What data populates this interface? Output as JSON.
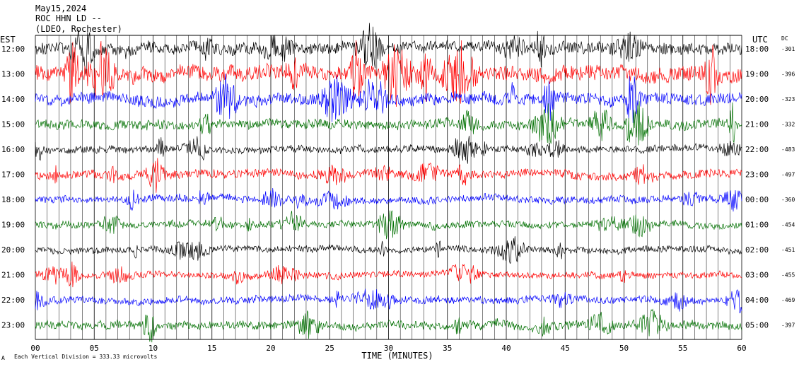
{
  "header": {
    "date": "May15,2024",
    "station": "ROC HHN LD --",
    "network": "(LDEO, Rochester)"
  },
  "left_axis_title": "EST",
  "right_axis_title": "UTC",
  "dc_title": "DC",
  "xlabel": "TIME (MINUTES)",
  "footer_symbol": "A",
  "footer": "Each Vertical Division =  333.33 microvolts",
  "colors": {
    "black": "#000000",
    "red": "#ff0000",
    "blue": "#0000ff",
    "green": "#007000"
  },
  "chart_data": {
    "type": "line",
    "title": "",
    "xlabel": "TIME (MINUTES)",
    "xlim": [
      0,
      60
    ],
    "x_ticks": [
      "00",
      "05",
      "10",
      "15",
      "20",
      "25",
      "30",
      "35",
      "40",
      "45",
      "50",
      "55",
      "60"
    ],
    "grid": "vertical lines every minute",
    "series": [
      {
        "est": "12:00",
        "utc": "18:00",
        "dc": "-301",
        "color": "black",
        "amp": 1.0
      },
      {
        "est": "13:00",
        "utc": "19:00",
        "dc": "-396",
        "color": "red",
        "amp": 1.3
      },
      {
        "est": "14:00",
        "utc": "20:00",
        "dc": "-323",
        "color": "blue",
        "amp": 1.0
      },
      {
        "est": "15:00",
        "utc": "21:00",
        "dc": "-332",
        "color": "green",
        "amp": 0.8
      },
      {
        "est": "16:00",
        "utc": "22:00",
        "dc": "-483",
        "color": "black",
        "amp": 0.6
      },
      {
        "est": "17:00",
        "utc": "23:00",
        "dc": "-497",
        "color": "red",
        "amp": 0.7
      },
      {
        "est": "18:00",
        "utc": "00:00",
        "dc": "-360",
        "color": "blue",
        "amp": 0.6
      },
      {
        "est": "19:00",
        "utc": "01:00",
        "dc": "-454",
        "color": "green",
        "amp": 0.6
      },
      {
        "est": "20:00",
        "utc": "02:00",
        "dc": "-451",
        "color": "black",
        "amp": 0.55
      },
      {
        "est": "21:00",
        "utc": "03:00",
        "dc": "-455",
        "color": "red",
        "amp": 0.55
      },
      {
        "est": "22:00",
        "utc": "04:00",
        "dc": "-469",
        "color": "blue",
        "amp": 0.6
      },
      {
        "est": "23:00",
        "utc": "05:00",
        "dc": "-397",
        "color": "green",
        "amp": 0.7
      }
    ]
  }
}
